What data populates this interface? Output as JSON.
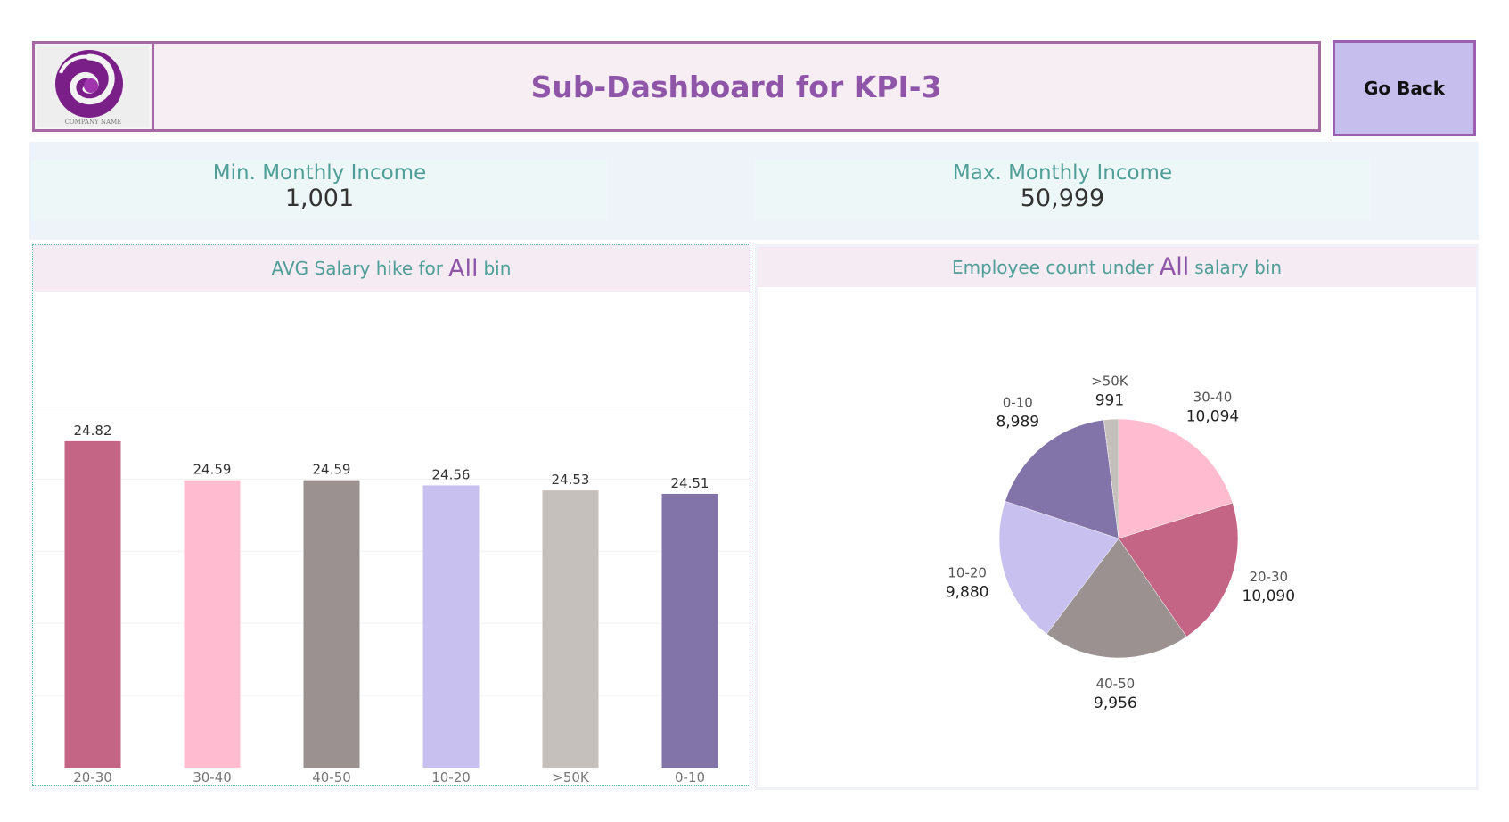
{
  "header": {
    "title": "Sub-Dashboard for KPI-3",
    "logo_caption": "COMPANY NAME",
    "go_back_label": "Go Back"
  },
  "kpis": {
    "min": {
      "label": "Min. Monthly Income",
      "value": "1,001"
    },
    "max": {
      "label": "Max. Monthly Income",
      "value": "50,999"
    }
  },
  "bar_panel": {
    "title_prefix": "AVG Salary hike for",
    "highlight": "All",
    "title_suffix": "bin"
  },
  "pie_panel": {
    "title_prefix": "Employee count under",
    "highlight": "All",
    "title_suffix": "salary bin"
  },
  "colors": {
    "20-30": "#c46586",
    "30-40": "#ffbcd1",
    "40-50": "#9b9190",
    "10-20": "#c8c1ef",
    ">50K": "#c5c0bc",
    "0-10": "#8273a8"
  },
  "chart_data": [
    {
      "type": "bar",
      "title": "AVG Salary hike for All bin",
      "categories": [
        "20-30",
        "30-40",
        "40-50",
        "10-20",
        ">50K",
        "0-10"
      ],
      "values": [
        24.82,
        24.59,
        24.59,
        24.56,
        24.53,
        24.51
      ],
      "data_labels": [
        "24.82",
        "24.59",
        "24.59",
        "24.56",
        "24.53",
        "24.51"
      ],
      "ylim": [
        22.9,
        25.7
      ],
      "grid": true,
      "xlabel": "",
      "ylabel": ""
    },
    {
      "type": "pie",
      "title": "Employee count under All salary bin",
      "categories": [
        "30-40",
        "20-30",
        "40-50",
        "10-20",
        "0-10",
        ">50K"
      ],
      "values": [
        10094,
        10090,
        9956,
        9880,
        8989,
        991
      ],
      "value_labels": [
        "10,094",
        "10,090",
        "9,956",
        "9,880",
        "8,989",
        "991"
      ]
    }
  ]
}
